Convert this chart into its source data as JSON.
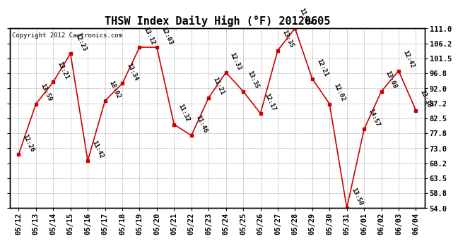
{
  "title": "THSW Index Daily High (°F) 20120605",
  "copyright": "Copyright 2012 Cartronics.com",
  "dates": [
    "05/12",
    "05/13",
    "05/14",
    "05/15",
    "05/16",
    "05/17",
    "05/18",
    "05/19",
    "05/20",
    "05/21",
    "05/22",
    "05/23",
    "05/24",
    "05/25",
    "05/26",
    "05/27",
    "05/28",
    "05/29",
    "05/30",
    "05/31",
    "06/01",
    "06/02",
    "06/03",
    "06/04"
  ],
  "values": [
    71.0,
    87.0,
    94.0,
    103.0,
    69.0,
    88.0,
    93.5,
    105.0,
    105.0,
    80.5,
    77.0,
    89.0,
    97.0,
    91.0,
    84.0,
    104.0,
    111.0,
    95.0,
    87.0,
    54.0,
    79.0,
    91.0,
    97.5,
    85.0
  ],
  "labels": [
    "12:26",
    "13:59",
    "13:21",
    "12:23",
    "11:42",
    "18:02",
    "13:34",
    "13:12",
    "12:03",
    "11:32",
    "11:46",
    "11:21",
    "12:33",
    "13:35",
    "12:17",
    "13:35",
    "11:47",
    "12:21",
    "12:02",
    "13:50",
    "14:57",
    "13:08",
    "12:42",
    "13:38"
  ],
  "ytick_labels": [
    "54.0",
    "58.8",
    "63.5",
    "68.2",
    "73.0",
    "77.8",
    "82.5",
    "87.2",
    "92.0",
    "96.8",
    "101.5",
    "106.2",
    "111.0"
  ],
  "yticks": [
    54.0,
    58.8,
    63.5,
    68.2,
    73.0,
    77.8,
    82.5,
    87.2,
    92.0,
    96.8,
    101.5,
    106.2,
    111.0
  ],
  "ylim": [
    54.0,
    111.0
  ],
  "line_color": "#cc0000",
  "marker_color": "#cc0000",
  "bg_color": "#ffffff",
  "grid_color": "#999999",
  "title_fontsize": 11,
  "label_fontsize": 6.5,
  "tick_fontsize": 7.5,
  "copyright_fontsize": 6.5
}
